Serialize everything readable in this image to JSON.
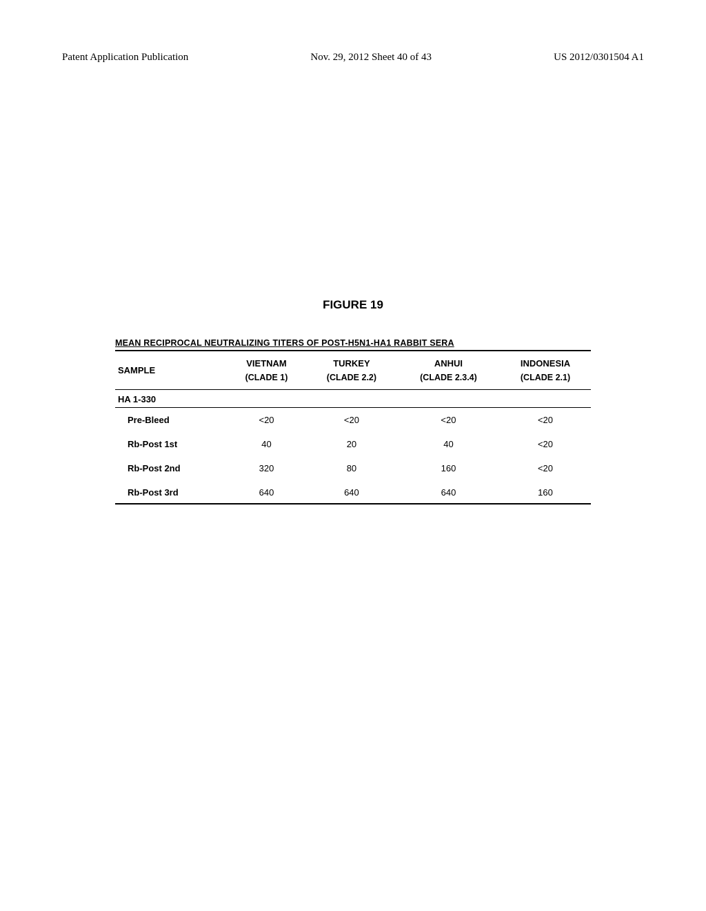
{
  "header": {
    "left": "Patent Application Publication",
    "center": "Nov. 29, 2012  Sheet 40 of 43",
    "right": "US 2012/0301504 A1"
  },
  "figure": {
    "title": "FIGURE 19",
    "table_title": "MEAN RECIPROCAL NEUTRALIZING TITERS OF POST-H5N1-HA1 RABBIT SERA",
    "columns": [
      {
        "label": "SAMPLE",
        "sub": ""
      },
      {
        "label": "VIETNAM",
        "sub": "(CLADE 1)"
      },
      {
        "label": "TURKEY",
        "sub": "(CLADE 2.2)"
      },
      {
        "label": "ANHUI",
        "sub": "(CLADE 2.3.4)"
      },
      {
        "label": "INDONESIA",
        "sub": "(CLADE 2.1)"
      }
    ],
    "section_label": "HA 1-330",
    "rows": [
      {
        "label": "Pre-Bleed",
        "values": [
          "<20",
          "<20",
          "<20",
          "<20"
        ]
      },
      {
        "label": "Rb-Post 1st",
        "values": [
          "40",
          "20",
          "40",
          "<20"
        ]
      },
      {
        "label": "Rb-Post 2nd",
        "values": [
          "320",
          "80",
          "160",
          "<20"
        ]
      },
      {
        "label": "Rb-Post 3rd",
        "values": [
          "640",
          "640",
          "640",
          "160"
        ]
      }
    ]
  },
  "styling": {
    "background_color": "#ffffff",
    "text_color": "#000000",
    "border_color": "#000000",
    "header_fontsize": 15,
    "figure_title_fontsize": 17,
    "table_title_fontsize": 12.5,
    "table_fontsize": 13
  }
}
